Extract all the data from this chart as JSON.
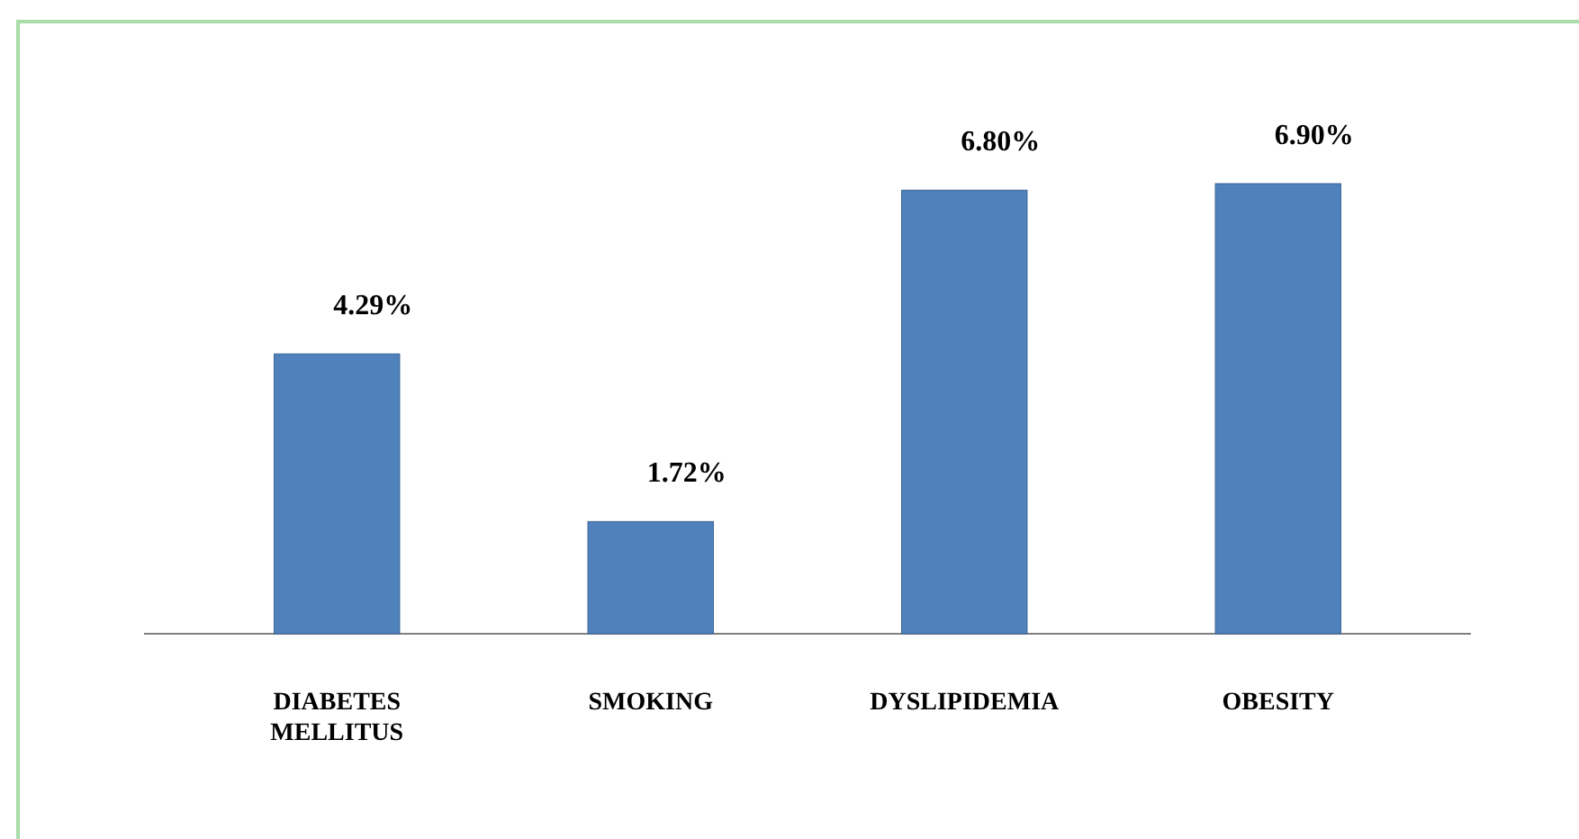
{
  "chart_data": {
    "type": "bar",
    "categories": [
      "DIABETES MELLITUS",
      "SMOKING",
      "DYSLIPIDEMIA",
      "OBESITY"
    ],
    "values": [
      4.29,
      1.72,
      6.8,
      6.9
    ],
    "value_labels": [
      "4.29%",
      "1.72%",
      "6.80%",
      "6.90%"
    ],
    "color": "#4f81bd"
  }
}
